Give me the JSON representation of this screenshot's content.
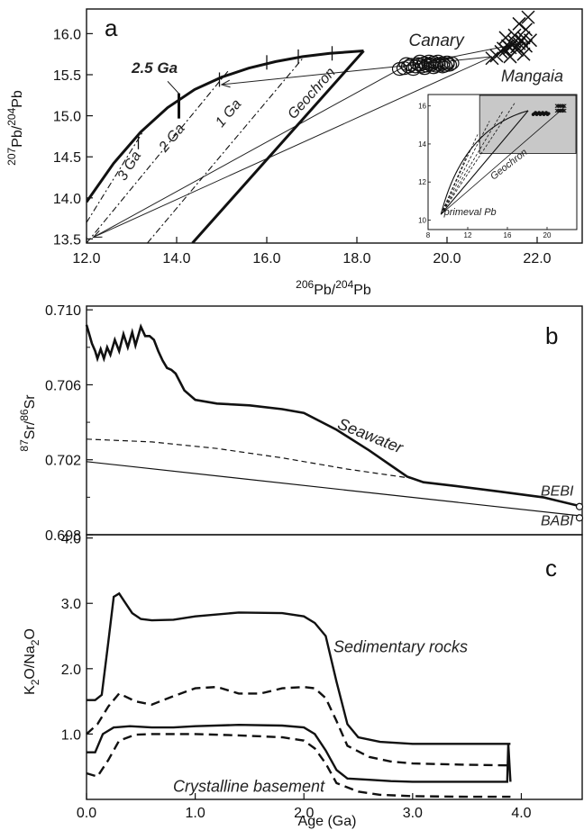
{
  "chart_data": [
    {
      "type": "line",
      "panel_letter": "a",
      "xlabel_base": "Pb/",
      "xlabel_sup1": "206",
      "xlabel_sup2": "204",
      "xlabel_tail": "Pb",
      "ylabel_sup1": "207",
      "ylabel_mid": "Pb/",
      "ylabel_sup2": "204",
      "ylabel_tail": "Pb",
      "xlim": [
        12.0,
        23.0
      ],
      "ylim": [
        13.45,
        16.3
      ],
      "xticks": [
        "12.0",
        "14.0",
        "16.0",
        "18.0",
        "20.0",
        "22.0"
      ],
      "xtick_values": [
        12,
        14,
        16,
        18,
        20,
        22
      ],
      "yticks": [
        "13.5",
        "14.0",
        "14.5",
        "15.0",
        "15.5",
        "16.0"
      ],
      "ytick_values": [
        13.5,
        14.0,
        14.5,
        15.0,
        15.5,
        16.0
      ],
      "growth_curve": {
        "x": [
          12.0,
          12.6,
          13.2,
          13.8,
          14.4,
          15.0,
          15.6,
          16.2,
          16.8,
          17.4,
          18.15
        ],
        "y": [
          13.95,
          14.42,
          14.8,
          15.1,
          15.32,
          15.47,
          15.58,
          15.66,
          15.72,
          15.76,
          15.79
        ]
      },
      "isochrons": [
        {
          "label": "3 Ga",
          "x": [
            12.0,
            13.3
          ],
          "y": [
            13.7,
            14.85
          ],
          "label_x": 12.85,
          "label_y": 14.2
        },
        {
          "label": "2 Ga",
          "x": [
            12.0,
            15.15
          ],
          "y": [
            13.45,
            15.55
          ],
          "label_x": 13.75,
          "label_y": 14.55
        },
        {
          "label": "1 Ga",
          "x": [
            13.35,
            16.8
          ],
          "y": [
            13.45,
            15.7
          ],
          "label_x": 15.0,
          "label_y": 14.85
        }
      ],
      "geochron": {
        "label": "Geochron",
        "x": [
          14.35,
          18.15
        ],
        "y": [
          13.45,
          15.79
        ],
        "label_x": 16.6,
        "label_y": 14.95
      },
      "age_label": {
        "text": "2.5 Ga",
        "x": 13.0,
        "y": 15.52
      },
      "canary": {
        "label": "Canary",
        "x": [
          18.95,
          19.05,
          19.15,
          19.2,
          19.3,
          19.35,
          19.4,
          19.45,
          19.5,
          19.55,
          19.6,
          19.65,
          19.7,
          19.75,
          19.8,
          19.85,
          19.9,
          19.95,
          20.0,
          20.05,
          20.1,
          19.25,
          19.5,
          19.7,
          19.9,
          19.1,
          19.4,
          19.6,
          19.8,
          20.0
        ],
        "y": [
          15.57,
          15.58,
          15.6,
          15.62,
          15.6,
          15.63,
          15.62,
          15.6,
          15.64,
          15.61,
          15.63,
          15.62,
          15.65,
          15.61,
          15.63,
          15.62,
          15.64,
          15.61,
          15.63,
          15.62,
          15.64,
          15.57,
          15.58,
          15.59,
          15.6,
          15.63,
          15.66,
          15.66,
          15.66,
          15.65
        ]
      },
      "mangaia": {
        "label": "Mangaia",
        "x": [
          21.0,
          21.1,
          21.2,
          21.25,
          21.3,
          21.35,
          21.4,
          21.45,
          21.5,
          21.55,
          21.6,
          21.65,
          21.7,
          21.75,
          21.8,
          21.3,
          21.5,
          21.7,
          21.6,
          21.4,
          21.75,
          21.85,
          21.55
        ],
        "y": [
          15.7,
          15.73,
          15.78,
          15.82,
          15.8,
          15.85,
          15.83,
          15.87,
          15.9,
          15.84,
          15.88,
          15.92,
          15.95,
          16.05,
          16.2,
          15.95,
          15.98,
          15.75,
          16.12,
          15.72,
          15.85,
          15.92,
          15.8
        ]
      },
      "trend_lines": [
        {
          "x": [
            19.05,
            21.8
          ],
          "y": [
            15.6,
            15.9
          ]
        },
        {
          "x": [
            21.0,
            15.0
          ],
          "y": [
            15.72,
            15.38
          ]
        },
        {
          "x": [
            21.0,
            12.15
          ],
          "y": [
            15.72,
            13.52
          ]
        },
        {
          "x": [
            19.05,
            12.15
          ],
          "y": [
            15.6,
            13.52
          ]
        }
      ],
      "inset": {
        "xlim": [
          8,
          23
        ],
        "ylim": [
          9.5,
          16.6
        ],
        "xticks": [
          "8",
          "12",
          "16",
          "20"
        ],
        "xtick_values": [
          8,
          12,
          16,
          20
        ],
        "yticks": [
          "10",
          "12",
          "14",
          "16"
        ],
        "ytick_values": [
          10,
          12,
          14,
          16
        ],
        "label_primeval": "primeval Pb",
        "label_geochron": "Geochron"
      }
    },
    {
      "type": "line",
      "panel_letter": "b",
      "ylabel_sup1": "87",
      "ylabel_mid": "Sr/",
      "ylabel_sup2": "86",
      "ylabel_tail": "Sr",
      "xlim": [
        0.0,
        4.56
      ],
      "ylim": [
        0.698,
        0.7102
      ],
      "yticks": [
        "0.698",
        "0.702",
        "0.706",
        "0.710"
      ],
      "ytick_values": [
        0.698,
        0.702,
        0.706,
        0.71
      ],
      "seawater": {
        "label": "Seawater",
        "x": [
          0.0,
          0.02,
          0.05,
          0.08,
          0.1,
          0.13,
          0.16,
          0.19,
          0.22,
          0.26,
          0.3,
          0.34,
          0.38,
          0.42,
          0.45,
          0.5,
          0.54,
          0.58,
          0.62,
          0.66,
          0.7,
          0.74,
          0.78,
          0.82,
          0.9,
          1.0,
          1.2,
          1.5,
          1.8,
          2.0,
          2.3,
          2.6,
          2.8,
          2.95,
          3.1,
          3.4,
          3.8,
          4.2,
          4.56
        ],
        "y": [
          0.7092,
          0.7088,
          0.7082,
          0.7078,
          0.7074,
          0.7079,
          0.7074,
          0.708,
          0.7076,
          0.7084,
          0.7078,
          0.7087,
          0.708,
          0.7088,
          0.7081,
          0.7091,
          0.7086,
          0.7086,
          0.7084,
          0.7078,
          0.7073,
          0.7069,
          0.7068,
          0.7066,
          0.7057,
          0.7052,
          0.705,
          0.7049,
          0.7047,
          0.7045,
          0.7036,
          0.7025,
          0.7017,
          0.7011,
          0.7008,
          0.7006,
          0.7003,
          0.7,
          0.6995
        ]
      },
      "dashed": {
        "x": [
          0.0,
          0.6,
          1.2,
          1.8,
          2.4,
          3.0
        ],
        "y": [
          0.7031,
          0.70295,
          0.7026,
          0.7021,
          0.7015,
          0.701
        ]
      },
      "lower": {
        "x": [
          0.0,
          4.56
        ],
        "y": [
          0.7019,
          0.699
        ]
      },
      "beb_label": "BEBI",
      "bab_label": "BABI",
      "beb_end": [
        4.56,
        0.6995
      ],
      "bab_end": [
        4.56,
        0.6989
      ]
    },
    {
      "type": "line",
      "panel_letter": "c",
      "xlabel": "Age (Ga)",
      "ylabel_prefix": "K",
      "ylabel_sub1": "2",
      "ylabel_mid": "O/Na",
      "ylabel_sub2": "2",
      "ylabel_tail": "O",
      "xlim": [
        0.0,
        4.56
      ],
      "xticks": [
        "0.0",
        "1.0",
        "2.0",
        "3.0",
        "4.0"
      ],
      "xtick_values": [
        0.0,
        1.0,
        2.0,
        3.0,
        4.0
      ],
      "yticks": [
        "1.0",
        "2.0",
        "3.0",
        "4.0"
      ],
      "ytick_values": [
        1.0,
        2.0,
        3.0,
        4.0
      ],
      "ylim": [
        0.0,
        4.05
      ],
      "sedimentary_label": "Sedimentary rocks",
      "crystalline_label": "Crystalline basement",
      "series": [
        {
          "style": "solid",
          "x": [
            0.0,
            0.08,
            0.14,
            0.2,
            0.25,
            0.3,
            0.36,
            0.42,
            0.5,
            0.6,
            0.8,
            1.0,
            1.4,
            1.8,
            2.0,
            2.1,
            2.2,
            2.3,
            2.4,
            2.5,
            2.7,
            3.0,
            3.5,
            3.9
          ],
          "y": [
            1.52,
            1.52,
            1.6,
            2.4,
            3.1,
            3.15,
            3.0,
            2.85,
            2.76,
            2.74,
            2.75,
            2.8,
            2.86,
            2.85,
            2.8,
            2.7,
            2.5,
            1.8,
            1.15,
            0.95,
            0.88,
            0.85,
            0.85,
            0.85
          ]
        },
        {
          "style": "dashed",
          "x": [
            0.0,
            0.1,
            0.2,
            0.3,
            0.45,
            0.6,
            0.8,
            1.0,
            1.2,
            1.4,
            1.6,
            1.8,
            2.0,
            2.1,
            2.2,
            2.3,
            2.4,
            2.6,
            2.8,
            3.0,
            3.5,
            3.9
          ],
          "y": [
            1.0,
            1.15,
            1.42,
            1.62,
            1.5,
            1.45,
            1.58,
            1.7,
            1.72,
            1.62,
            1.62,
            1.7,
            1.72,
            1.7,
            1.55,
            1.2,
            0.82,
            0.65,
            0.58,
            0.55,
            0.53,
            0.52
          ]
        },
        {
          "style": "solid",
          "x": [
            0.0,
            0.08,
            0.15,
            0.25,
            0.4,
            0.6,
            0.8,
            1.0,
            1.4,
            1.8,
            2.0,
            2.1,
            2.2,
            2.3,
            2.4,
            2.6,
            2.8,
            3.0,
            3.5,
            3.87,
            3.88,
            3.9
          ],
          "y": [
            0.72,
            0.72,
            1.0,
            1.1,
            1.12,
            1.1,
            1.1,
            1.12,
            1.14,
            1.13,
            1.1,
            1.0,
            0.75,
            0.45,
            0.32,
            0.3,
            0.28,
            0.27,
            0.27,
            0.27,
            0.85,
            0.27
          ]
        },
        {
          "style": "dashed",
          "x": [
            0.0,
            0.1,
            0.2,
            0.3,
            0.45,
            0.6,
            0.8,
            1.0,
            1.4,
            1.8,
            2.0,
            2.1,
            2.2,
            2.3,
            2.5,
            2.7,
            3.0,
            3.5,
            3.9
          ],
          "y": [
            0.4,
            0.35,
            0.6,
            0.9,
            0.99,
            1.0,
            1.0,
            1.0,
            0.98,
            0.95,
            0.9,
            0.78,
            0.55,
            0.25,
            0.12,
            0.07,
            0.05,
            0.04,
            0.04
          ]
        }
      ]
    }
  ]
}
